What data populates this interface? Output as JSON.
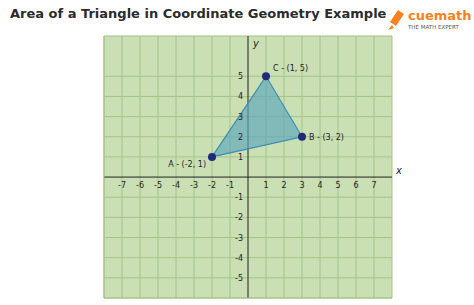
{
  "chart_data": {
    "type": "scatter",
    "title": "Area of a Triangle in Coordinate Geometry Example",
    "annotations": [
      "cuemath",
      "THE MATH EXPERT"
    ],
    "xlabel": "x",
    "ylabel": "y",
    "x": [
      -2,
      3,
      1
    ],
    "values": [
      1,
      2,
      5
    ],
    "point_labels": [
      "A - (-2, 1)",
      "B - (3, 2)",
      "C - (1, 5)"
    ],
    "color": "#1f2a7a",
    "xlim": [
      -8,
      8
    ],
    "ylim": [
      -6,
      7
    ],
    "xticks": [
      -7,
      -6,
      -5,
      -4,
      -3,
      -2,
      -1,
      1,
      2,
      3,
      4,
      5,
      6,
      7
    ],
    "yticks": [
      -5,
      -4,
      -3,
      -2,
      -1,
      1,
      2,
      3,
      4,
      5
    ],
    "grid": true
  }
}
